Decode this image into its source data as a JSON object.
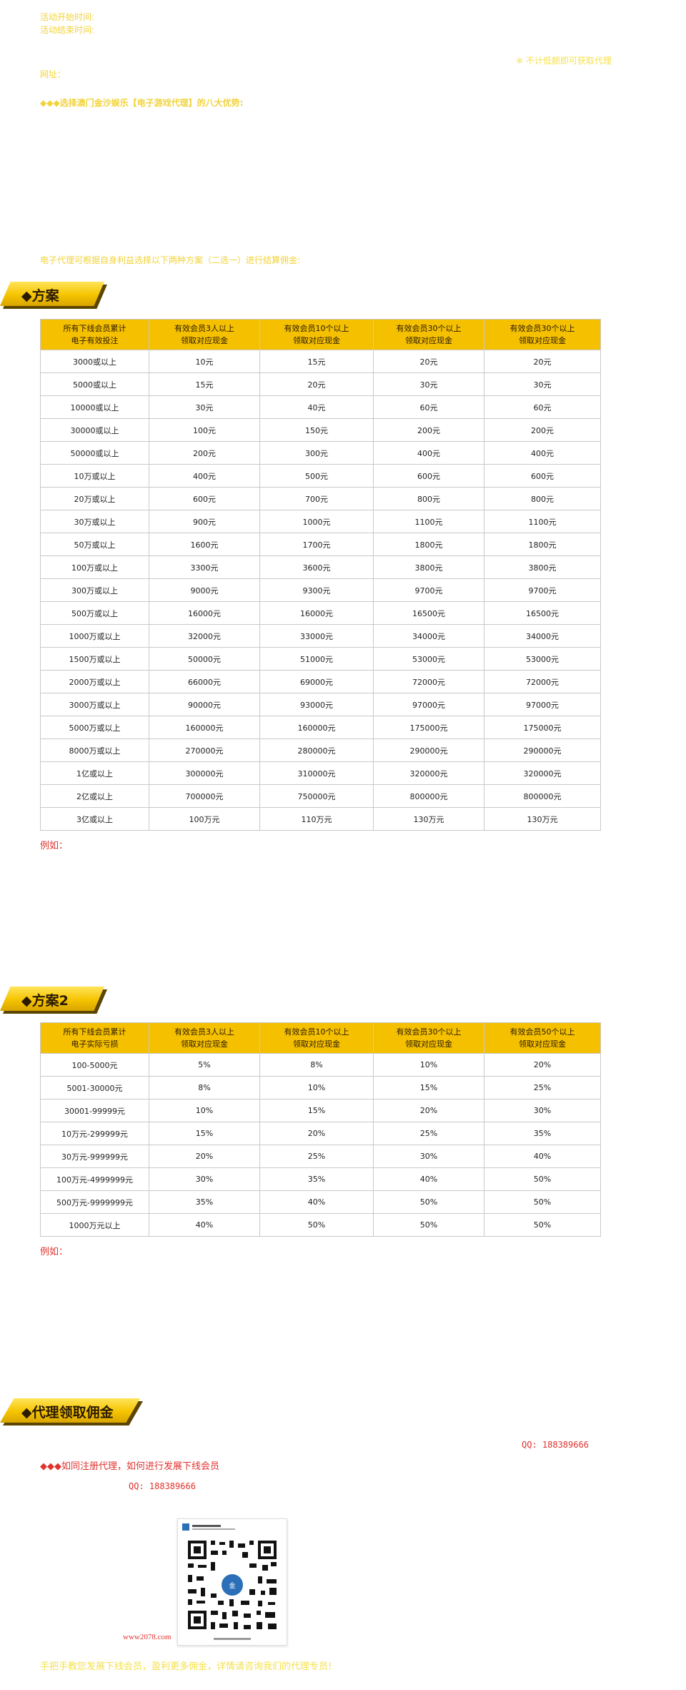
{
  "intro": {
    "line1": "活动开始时间:",
    "line2": "活动结束时间:",
    "right_note": "※ 不计低额即可获取代理",
    "line3": "网址：",
    "line4": "◆◆◆选择澳门金沙娱乐【电子游戏代理】的八大优势:",
    "line5": "电子代理可根据自身利益选择以下两种方案（二选一）进行结算佣金:"
  },
  "plan1": {
    "title": "◆方案",
    "headers": [
      "所有下线会员累计\n电子有效投注",
      "有效会员3人以上\n领取对应现金",
      "有效会员10个以上\n领取对应现金",
      "有效会员30个以上\n领取对应现金",
      "有效会员30个以上\n领取对应现金"
    ],
    "rows": [
      [
        "3000或以上",
        "10元",
        "15元",
        "20元",
        "20元"
      ],
      [
        "5000或以上",
        "15元",
        "20元",
        "30元",
        "30元"
      ],
      [
        "10000或以上",
        "30元",
        "40元",
        "60元",
        "60元"
      ],
      [
        "30000或以上",
        "100元",
        "150元",
        "200元",
        "200元"
      ],
      [
        "50000或以上",
        "200元",
        "300元",
        "400元",
        "400元"
      ],
      [
        "10万或以上",
        "400元",
        "500元",
        "600元",
        "600元"
      ],
      [
        "20万或以上",
        "600元",
        "700元",
        "800元",
        "800元"
      ],
      [
        "30万或以上",
        "900元",
        "1000元",
        "1100元",
        "1100元"
      ],
      [
        "50万或以上",
        "1600元",
        "1700元",
        "1800元",
        "1800元"
      ],
      [
        "100万或以上",
        "3300元",
        "3600元",
        "3800元",
        "3800元"
      ],
      [
        "300万或以上",
        "9000元",
        "9300元",
        "9700元",
        "9700元"
      ],
      [
        "500万或以上",
        "16000元",
        "16000元",
        "16500元",
        "16500元"
      ],
      [
        "1000万或以上",
        "32000元",
        "33000元",
        "34000元",
        "34000元"
      ],
      [
        "1500万或以上",
        "50000元",
        "51000元",
        "53000元",
        "53000元"
      ],
      [
        "2000万或以上",
        "66000元",
        "69000元",
        "72000元",
        "72000元"
      ],
      [
        "3000万或以上",
        "90000元",
        "93000元",
        "97000元",
        "97000元"
      ],
      [
        "5000万或以上",
        "160000元",
        "160000元",
        "175000元",
        "175000元"
      ],
      [
        "8000万或以上",
        "270000元",
        "280000元",
        "290000元",
        "290000元"
      ],
      [
        "1亿或以上",
        "300000元",
        "310000元",
        "320000元",
        "320000元"
      ],
      [
        "2亿或以上",
        "700000元",
        "750000元",
        "800000元",
        "800000元"
      ],
      [
        "3亿或以上",
        "100万元",
        "110万元",
        "130万元",
        "130万元"
      ]
    ],
    "example": "例如："
  },
  "plan2": {
    "title": "◆方案2",
    "headers": [
      "所有下线会员累计\n电子实际亏损",
      "有效会员3人以上\n领取对应现金",
      "有效会员10个以上\n领取对应现金",
      "有效会员30个以上\n领取对应现金",
      "有效会员50个以上\n领取对应现金"
    ],
    "rows": [
      [
        "100-5000元",
        "5%",
        "8%",
        "10%",
        "20%"
      ],
      [
        "5001-30000元",
        "8%",
        "10%",
        "15%",
        "25%"
      ],
      [
        "30001-99999元",
        "10%",
        "15%",
        "20%",
        "30%"
      ],
      [
        "10万元-299999元",
        "15%",
        "20%",
        "25%",
        "35%"
      ],
      [
        "30万元-999999元",
        "20%",
        "25%",
        "30%",
        "40%"
      ],
      [
        "100万元-4999999元",
        "30%",
        "35%",
        "40%",
        "50%"
      ],
      [
        "500万元-9999999元",
        "35%",
        "40%",
        "50%",
        "50%"
      ],
      [
        "1000万元以上",
        "40%",
        "50%",
        "50%",
        "50%"
      ]
    ],
    "example": "例如："
  },
  "agent": {
    "title": "◆代理领取佣金",
    "qq_right": "QQ: 188389666",
    "how_to": "◆◆◆如同注册代理，如何进行发展下线会员",
    "qq_left": "QQ: 188389666",
    "site": "www2078.com",
    "footer": "手把手教您发展下线会员，盈利更多佣金，详情请咨询我们的代理专员!",
    "colors": {
      "accent": "#f5c000",
      "red": "#e0322e"
    }
  }
}
